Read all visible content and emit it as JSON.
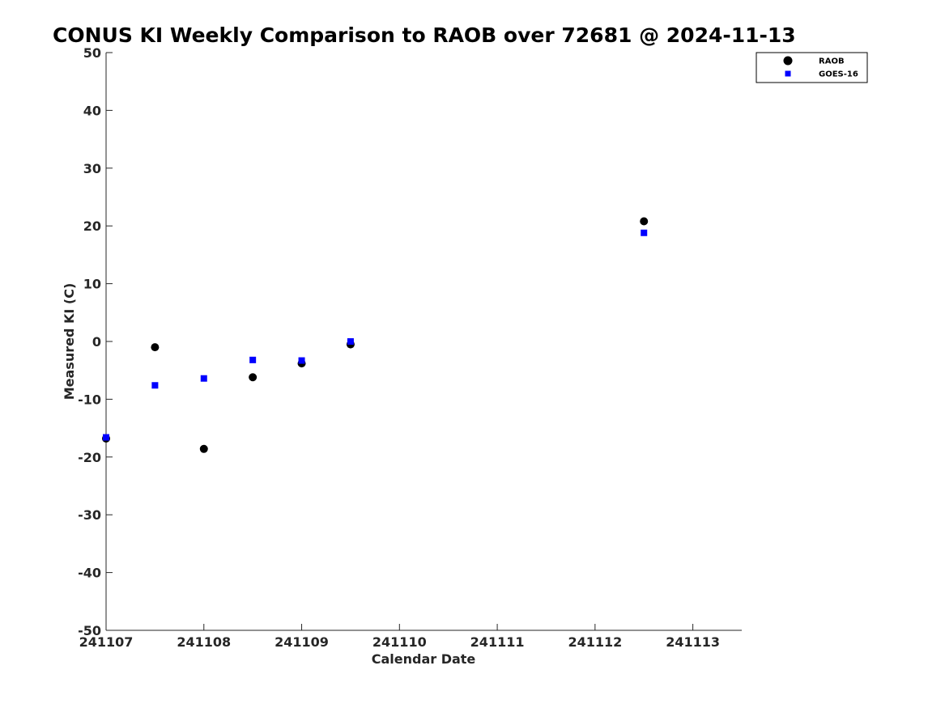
{
  "chart_data": {
    "type": "scatter",
    "title": "CONUS KI Weekly Comparison to RAOB over 72681 @ 2024-11-13",
    "xlabel": "Calendar Date",
    "ylabel": "Measured KI (C)",
    "xlim": [
      0,
      6.5
    ],
    "ylim": [
      -50,
      50
    ],
    "x_ticks": [
      0,
      1,
      2,
      3,
      4,
      5,
      6
    ],
    "x_tick_labels": [
      "241107",
      "241108",
      "241109",
      "241110",
      "241111",
      "241112",
      "241113"
    ],
    "y_ticks": [
      -50,
      -40,
      -30,
      -20,
      -10,
      0,
      10,
      20,
      30,
      40,
      50
    ],
    "y_tick_labels": [
      "-50",
      "-40",
      "-30",
      "-20",
      "-10",
      "0",
      "10",
      "20",
      "30",
      "40",
      "50"
    ],
    "legend_position": "top-right",
    "grid": false,
    "series": [
      {
        "name": "RAOB",
        "marker": "circle",
        "color": "#000000",
        "x": [
          0,
          0.5,
          1,
          1.5,
          2,
          2.5,
          5.5
        ],
        "y": [
          -16.8,
          -1.0,
          -18.6,
          -6.2,
          -3.8,
          -0.5,
          20.8
        ]
      },
      {
        "name": "GOES-16",
        "marker": "square",
        "color": "#0000ff",
        "x": [
          0,
          0.5,
          1,
          1.5,
          2,
          2.5,
          5.5
        ],
        "y": [
          -16.6,
          -7.6,
          -6.4,
          -3.2,
          -3.3,
          0.0,
          18.8
        ]
      }
    ]
  }
}
